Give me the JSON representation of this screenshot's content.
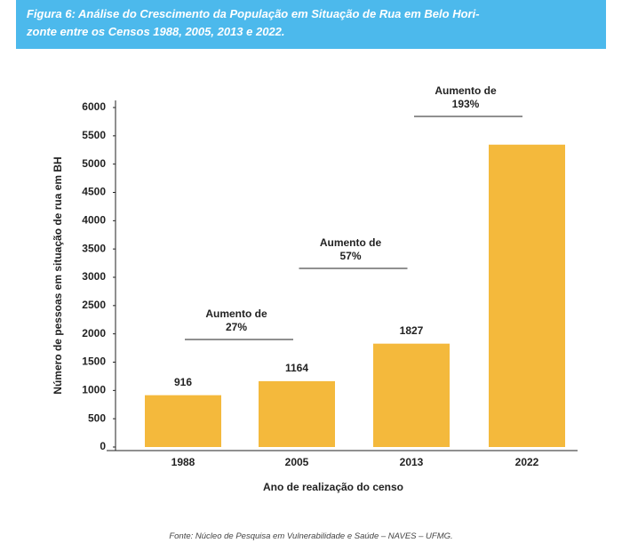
{
  "header": {
    "title_lines": [
      "Figura 6: Análise do Crescimento da População em Situação de Rua em Belo Hori-",
      "zonte entre os Censos 1988, 2005, 2013 e 2022."
    ]
  },
  "chart_data": {
    "type": "bar",
    "categories": [
      "1988",
      "2005",
      "2013",
      "2022"
    ],
    "values": [
      916,
      1164,
      1827,
      5344
    ],
    "value_labels": [
      "916",
      "1164",
      "1827",
      null
    ],
    "color": "#f4b93c",
    "ylim": [
      0,
      6000
    ],
    "yticks": [
      0,
      500,
      1000,
      1500,
      2000,
      2500,
      3000,
      3500,
      4000,
      4500,
      5000,
      5500,
      6000
    ],
    "x_label": "Ano de realização do censo",
    "y_label": "Número de pessoas em situação de rua em BH",
    "annotations": [
      {
        "lines": [
          "Aumento de",
          "27%"
        ]
      },
      {
        "lines": [
          "Aumento de",
          "57%"
        ]
      },
      {
        "lines": [
          "Aumento de",
          "193%"
        ]
      }
    ]
  },
  "footer": {
    "source": "Fonte: Núcleo de Pesquisa em Vulnerabilidade e Saúde – NAVES – UFMG."
  }
}
